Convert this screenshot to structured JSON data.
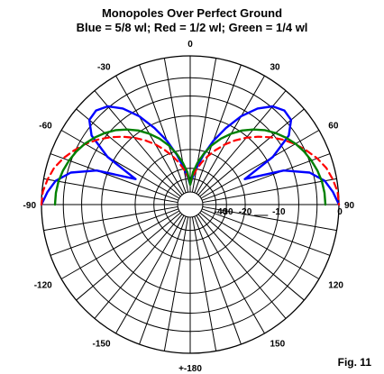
{
  "title_line1": "Monopoles Over Perfect Ground",
  "title_line2": "Blue = 5/8 wl; Red = 1/2 wl; Green = 1/4 wl",
  "figure_label": "Fig. 11",
  "chart_data": {
    "type": "polar",
    "angle_labels": [
      {
        "angle": 0,
        "text": "0"
      },
      {
        "angle": 30,
        "text": "30"
      },
      {
        "angle": 60,
        "text": "60"
      },
      {
        "angle": 90,
        "text": "90"
      },
      {
        "angle": 120,
        "text": "120"
      },
      {
        "angle": 150,
        "text": "150"
      },
      {
        "angle": 180,
        "text": "+-180"
      },
      {
        "angle": -150,
        "text": "-150"
      },
      {
        "angle": -120,
        "text": "-120"
      },
      {
        "angle": -90,
        "text": "-90"
      },
      {
        "angle": -60,
        "text": "-60"
      },
      {
        "angle": -30,
        "text": "-30"
      }
    ],
    "radial_scale": "log-periodic dB",
    "radial_rings_db": [
      0,
      -3,
      -6,
      -10,
      -20,
      -30,
      -40
    ],
    "radial_tick_labels": [
      {
        "db": -40,
        "text": "-40"
      },
      {
        "db": -30,
        "text": "-30"
      },
      {
        "db": -20,
        "text": "-20"
      },
      {
        "db": -10,
        "text": "-10"
      },
      {
        "db": 0,
        "text": "0"
      }
    ],
    "spoke_step_deg": 10,
    "series": [
      {
        "color": "#0000ff",
        "dash": "solid",
        "elevation_deg": [
          0,
          5,
          10,
          15,
          20,
          25,
          30,
          35,
          40,
          45,
          50,
          55,
          60,
          65,
          70,
          75,
          80,
          85,
          90
        ],
        "gain_db": [
          0,
          -0.7,
          -1.6,
          -3.5,
          -7.7,
          -18,
          -8.5,
          -4,
          -2.3,
          -2.1,
          -2.8,
          -4.5,
          -7.2,
          -11,
          -15.5,
          -21.5,
          -29,
          -38,
          -50
        ]
      },
      {
        "color": "#ff0000",
        "dash": "dashed",
        "elevation_deg": [
          0,
          5,
          10,
          15,
          20,
          25,
          30,
          35,
          40,
          45,
          50,
          55,
          60,
          65,
          70,
          75,
          80,
          85,
          90
        ],
        "gain_db": [
          0,
          -0.1,
          -0.5,
          -1,
          -1.8,
          -2.8,
          -3.9,
          -5.2,
          -6.7,
          -8.4,
          -10.3,
          -12.5,
          -15,
          -18,
          -21.5,
          -25.5,
          -30.5,
          -37,
          -50
        ]
      },
      {
        "color": "#008000",
        "dash": "solid",
        "elevation_deg": [
          0,
          5,
          10,
          15,
          20,
          25,
          30,
          35,
          40,
          45,
          50,
          55,
          60,
          65,
          70,
          75,
          80,
          85,
          90
        ],
        "gain_db": [
          -1.8,
          -1.85,
          -2,
          -2.3,
          -2.7,
          -3.2,
          -3.8,
          -4.6,
          -5.5,
          -6.6,
          -8,
          -9.6,
          -11.6,
          -14,
          -17,
          -21,
          -26,
          -33,
          -50
        ]
      }
    ]
  }
}
